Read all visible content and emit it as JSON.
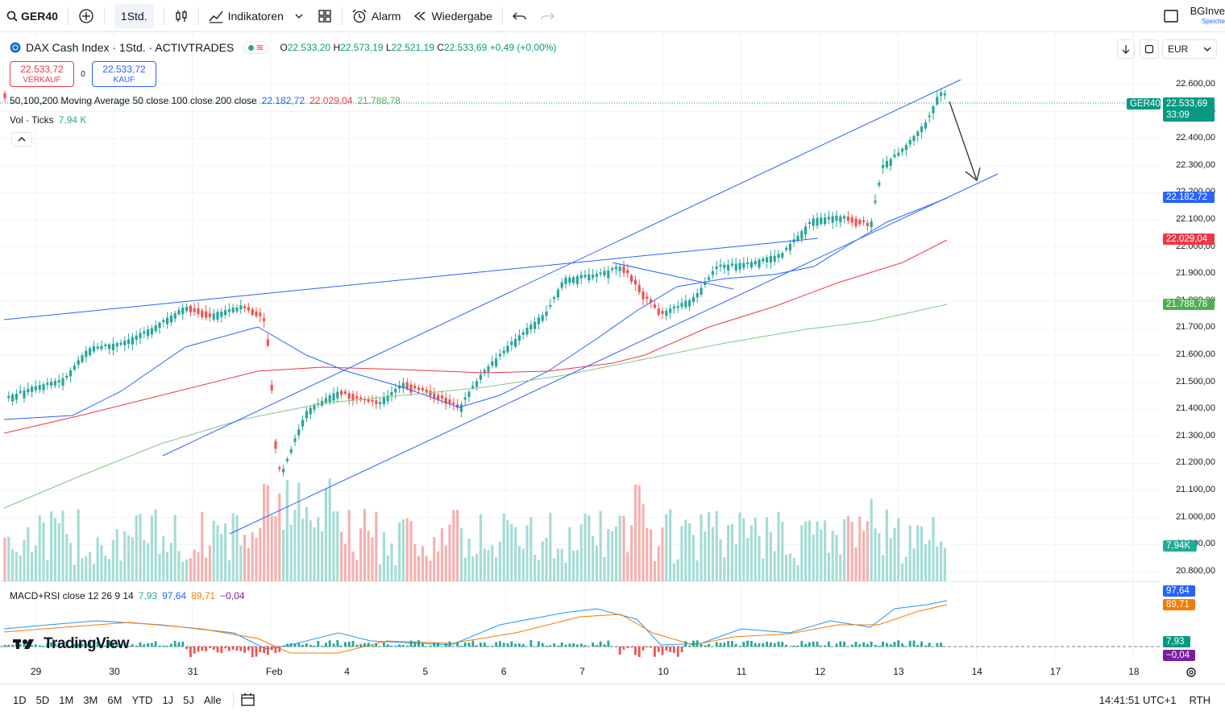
{
  "toolbar": {
    "symbol": "GER40",
    "interval": "1Std.",
    "indicators": "Indikatoren",
    "alert": "Alarm",
    "replay": "Wiedergabe",
    "account": "BGInve",
    "account_sub": "Speiche"
  },
  "legend": {
    "title": "DAX Cash Index · 1Std. · ACTIVTRADES",
    "ohlc": {
      "o_label": "O",
      "o": "22.533,20",
      "h_label": "H",
      "h": "22.573,19",
      "l_label": "L",
      "l": "22.521,19",
      "c_label": "C",
      "c": "22.533,69",
      "change": "+0,49 (+0,00%)"
    },
    "sell_price": "22.533,72",
    "sell_label": "VERKAUF",
    "spread": "0",
    "buy_price": "22.533,72",
    "buy_label": "KAUF",
    "ma_label": "50,100,200 Moving Average 50 close 100 close 200 close",
    "ma50": "22.182,72",
    "ma100": "22.029,04",
    "ma200": "21.788,78",
    "vol_label": "Vol · Ticks",
    "vol_value": "7,94 K",
    "macd_label": "MACD+RSI close 12 26 9 14",
    "macd_v1": "7,93",
    "macd_v2": "97,64",
    "macd_v3": "89,71",
    "macd_v4": "−0,04",
    "currency": "EUR"
  },
  "price_axis": [
    "22.600,00",
    "22.500,00",
    "22.400,00",
    "22.300,00",
    "22.200,00",
    "22.100,00",
    "22.000,00",
    "21.900,00",
    "21.800,00",
    "21.700,00",
    "21.600,00",
    "21.500,00",
    "21.400,00",
    "21.300,00",
    "21.200,00",
    "21.100,00",
    "21.000,00",
    "20.900,00",
    "20.800,00"
  ],
  "tags": {
    "symbol_tag": "GER40",
    "last": "22.533,69",
    "countdown": "33:09",
    "ma50": "22.182,72",
    "ma100": "22.029,04",
    "ma200": "21.788,78",
    "volume": "7,94K",
    "rsi": "97,64",
    "rsi_ma": "89,71",
    "macd": "7,93",
    "macd_hist": "−0,04"
  },
  "time_axis": [
    "29",
    "30",
    "31",
    "Feb",
    "4",
    "5",
    "6",
    "7",
    "10",
    "11",
    "12",
    "13",
    "14",
    "17",
    "18"
  ],
  "timeframes": [
    "1D",
    "5D",
    "1M",
    "3M",
    "6M",
    "YTD",
    "1J",
    "5J",
    "Alle"
  ],
  "clock": "14:41:51 UTC+1",
  "session": "RTH",
  "watermark": "TradingView",
  "colors": {
    "up": "#26a69a",
    "down": "#ef5350",
    "ma50": "#2962ff",
    "ma100": "#f23645",
    "ma200": "#4caf50",
    "trend": "#2962ff"
  }
}
